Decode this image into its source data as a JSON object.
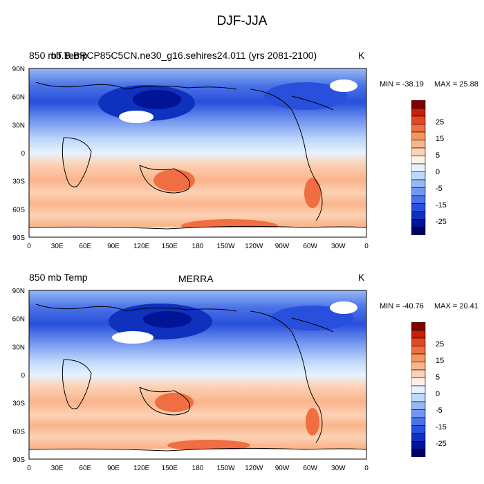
{
  "figure": {
    "title": "DJF-JJA"
  },
  "axes": {
    "lat_labels": [
      "90N",
      "60N",
      "30N",
      "0",
      "30S",
      "60S",
      "90S"
    ],
    "lon_labels": [
      "0",
      "30E",
      "60E",
      "90E",
      "120E",
      "150E",
      "180",
      "150W",
      "120W",
      "90W",
      "60W",
      "30W",
      "0"
    ]
  },
  "colorbar": {
    "labels": [
      "25",
      "15",
      "5",
      "0",
      "-5",
      "-15",
      "-25"
    ],
    "colors": [
      "#800000",
      "#c81e0a",
      "#e6461e",
      "#f06e41",
      "#f5965f",
      "#fab48c",
      "#fcd2b4",
      "#fff0e6",
      "#e6f2ff",
      "#bed7fa",
      "#96b9f5",
      "#7396f0",
      "#4b73e6",
      "#2850dc",
      "#0f32be",
      "#001496",
      "#000064"
    ]
  },
  "panels": [
    {
      "left_title": "850 mb Temp",
      "center_title": "bT.B.BRCP85C5CN.ne30_g16.sehires24.011 (yrs 2081-2100)",
      "units": "K",
      "min_label": "MIN = -38.19",
      "max_label": "MAX =  25.88",
      "min_value": -38.19,
      "max_value": 25.88
    },
    {
      "left_title": "850 mb Temp",
      "center_title": "MERRA",
      "units": "K",
      "min_label": "MIN = -40.76",
      "max_label": "MAX =  20.41",
      "min_value": -40.76,
      "max_value": 20.41
    }
  ]
}
